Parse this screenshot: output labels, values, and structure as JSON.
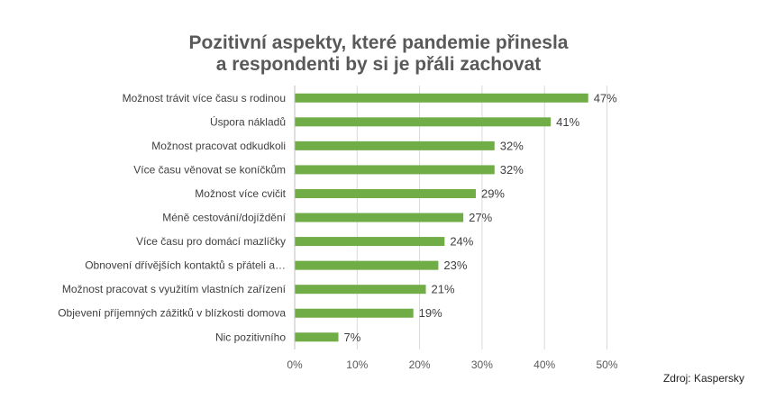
{
  "chart_data": {
    "type": "bar",
    "orientation": "horizontal",
    "title_line1": "Pozitivní aspekty, které pandemie přinesla",
    "title_line2": "a respondenti by si je přáli zachovat",
    "categories": [
      "Možnost trávit více času s rodinou",
      "Úspora nákladů",
      "Možnost pracovat odkudkoli",
      "Více času věnovat se koníčkům",
      "Možnost více cvičit",
      "Méně cestování/dojíždění",
      "Více času pro domácí mazlíčky",
      "Obnovení dřívějších kontaktů s přáteli a…",
      "Možnost pracovat s využitím vlastních zařízení",
      "Objevení příjemných zážitků v blízkosti domova",
      "Nic pozitivního"
    ],
    "values": [
      47,
      41,
      32,
      32,
      29,
      27,
      24,
      23,
      21,
      19,
      7
    ],
    "value_labels": [
      "47%",
      "41%",
      "32%",
      "32%",
      "29%",
      "27%",
      "24%",
      "23%",
      "21%",
      "19%",
      "7%"
    ],
    "xlim": [
      0,
      50
    ],
    "ticks": [
      0,
      10,
      20,
      30,
      40,
      50
    ],
    "tick_labels": [
      "0%",
      "10%",
      "20%",
      "30%",
      "40%",
      "50%"
    ],
    "grid": true,
    "bar_color": "#70ad47",
    "grid_color": "#d9d9d9"
  },
  "source": "Zdroj: Kaspersky"
}
